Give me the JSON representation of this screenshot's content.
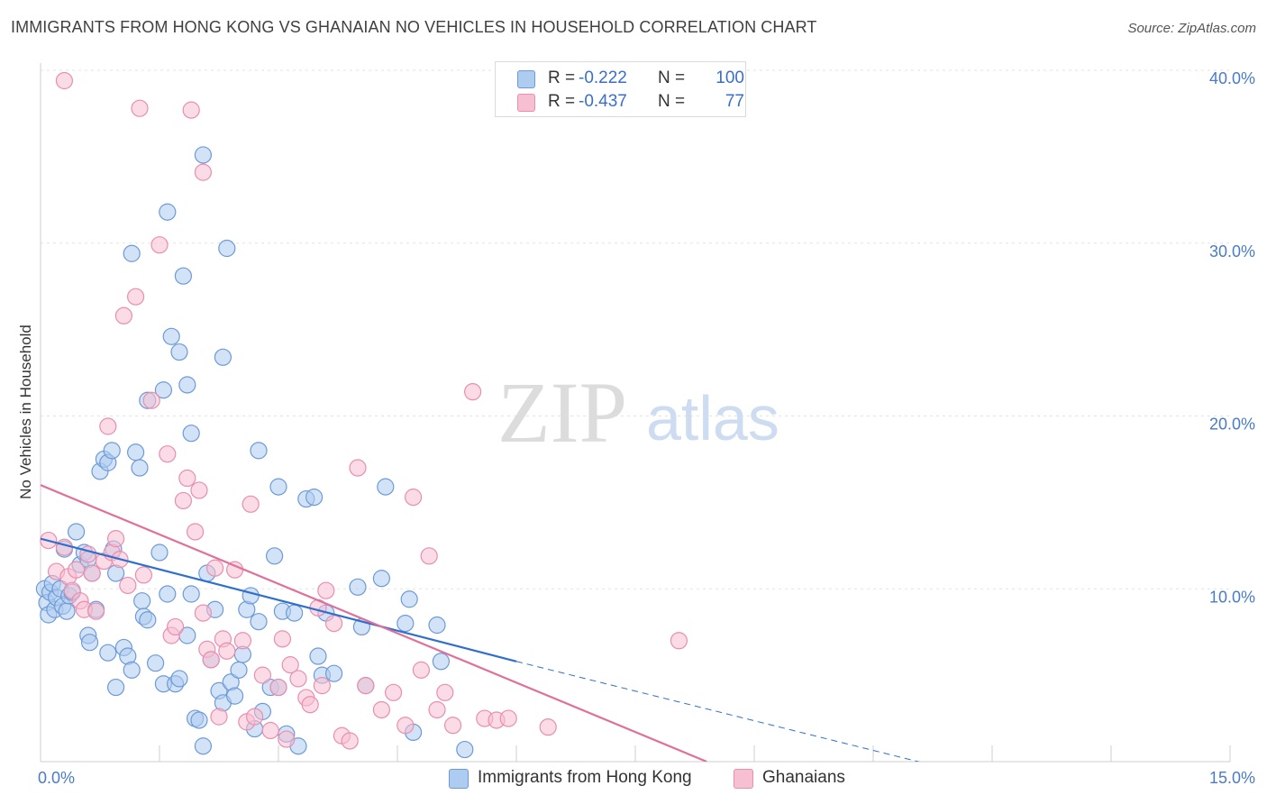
{
  "header": {
    "title": "IMMIGRANTS FROM HONG KONG VS GHANAIAN NO VEHICLES IN HOUSEHOLD CORRELATION CHART",
    "source": "Source: ZipAtlas.com"
  },
  "watermark": {
    "zip": "ZIP",
    "atlas": "atlas"
  },
  "legend": {
    "rows": [
      {
        "r_label": "R =",
        "r_value": "-0.222",
        "n_label": "N =",
        "n_value": "100"
      },
      {
        "r_label": "R =",
        "r_value": "-0.437",
        "n_label": "N =",
        "n_value": "77"
      }
    ]
  },
  "bottom_legend": {
    "items": [
      {
        "label": "Immigrants from Hong Kong"
      },
      {
        "label": "Ghanaians"
      }
    ]
  },
  "colors": {
    "blue_fill": "#aeccf0",
    "blue_stroke": "#6d9ad6",
    "blue_line": "#2f6fcc",
    "pink_fill": "#f7bfd2",
    "pink_stroke": "#e98eae",
    "pink_line": "#e0709a",
    "grid": "#e3e3e3",
    "tick_text": "#4a7bc8"
  },
  "chart_data": {
    "type": "scatter",
    "title": "IMMIGRANTS FROM HONG KONG VS GHANAIAN NO VEHICLES IN HOUSEHOLD CORRELATION CHART",
    "xlabel": "",
    "ylabel": "No Vehicles in Household",
    "xlim": [
      0,
      15
    ],
    "ylim": [
      0,
      40
    ],
    "x_tick_labels": [
      "0.0%",
      "15.0%"
    ],
    "y_ticks": [
      10,
      20,
      30,
      40
    ],
    "y_tick_labels": [
      "10.0%",
      "20.0%",
      "30.0%",
      "40.0%"
    ],
    "grid": true,
    "legend_position": "top-center",
    "series": [
      {
        "name": "Immigrants from Hong Kong",
        "color": "#aeccf0",
        "points": [
          [
            0.05,
            10.0
          ],
          [
            0.08,
            9.2
          ],
          [
            0.1,
            8.5
          ],
          [
            0.12,
            9.8
          ],
          [
            0.15,
            10.3
          ],
          [
            0.18,
            8.8
          ],
          [
            0.2,
            9.5
          ],
          [
            0.25,
            10.0
          ],
          [
            0.28,
            9.0
          ],
          [
            0.3,
            12.3
          ],
          [
            0.33,
            8.7
          ],
          [
            0.36,
            9.6
          ],
          [
            0.4,
            9.8
          ],
          [
            0.45,
            13.3
          ],
          [
            0.5,
            11.4
          ],
          [
            0.55,
            12.1
          ],
          [
            0.6,
            11.7
          ],
          [
            0.65,
            10.9
          ],
          [
            0.7,
            8.8
          ],
          [
            0.6,
            7.3
          ],
          [
            0.62,
            6.9
          ],
          [
            0.75,
            16.8
          ],
          [
            0.8,
            17.5
          ],
          [
            0.85,
            17.3
          ],
          [
            0.9,
            18.0
          ],
          [
            0.92,
            12.3
          ],
          [
            0.95,
            10.9
          ],
          [
            0.85,
            6.3
          ],
          [
            0.95,
            4.3
          ],
          [
            1.05,
            6.6
          ],
          [
            1.1,
            6.1
          ],
          [
            1.15,
            5.3
          ],
          [
            1.2,
            17.9
          ],
          [
            1.25,
            17.0
          ],
          [
            1.28,
            9.3
          ],
          [
            1.3,
            8.4
          ],
          [
            1.35,
            8.2
          ],
          [
            1.45,
            5.7
          ],
          [
            1.5,
            12.1
          ],
          [
            1.55,
            4.5
          ],
          [
            1.6,
            9.7
          ],
          [
            1.7,
            4.5
          ],
          [
            1.75,
            4.8
          ],
          [
            1.85,
            7.3
          ],
          [
            1.9,
            9.7
          ],
          [
            1.95,
            2.5
          ],
          [
            2.0,
            2.4
          ],
          [
            2.05,
            0.9
          ],
          [
            2.1,
            10.9
          ],
          [
            2.15,
            5.9
          ],
          [
            2.2,
            8.8
          ],
          [
            2.25,
            4.1
          ],
          [
            2.3,
            3.4
          ],
          [
            2.4,
            4.6
          ],
          [
            2.45,
            3.8
          ],
          [
            2.5,
            5.3
          ],
          [
            2.55,
            6.2
          ],
          [
            2.6,
            8.8
          ],
          [
            2.65,
            9.6
          ],
          [
            2.7,
            1.9
          ],
          [
            2.75,
            8.1
          ],
          [
            2.8,
            2.9
          ],
          [
            2.9,
            4.3
          ],
          [
            2.95,
            11.9
          ],
          [
            3.0,
            4.3
          ],
          [
            3.05,
            8.7
          ],
          [
            3.1,
            1.6
          ],
          [
            3.2,
            8.6
          ],
          [
            3.25,
            0.9
          ],
          [
            3.35,
            15.2
          ],
          [
            3.45,
            15.3
          ],
          [
            3.5,
            6.1
          ],
          [
            3.55,
            5.0
          ],
          [
            3.6,
            8.6
          ],
          [
            3.7,
            5.1
          ],
          [
            4.0,
            10.1
          ],
          [
            4.05,
            7.8
          ],
          [
            4.1,
            4.4
          ],
          [
            4.3,
            10.6
          ],
          [
            4.35,
            15.9
          ],
          [
            4.6,
            8.0
          ],
          [
            4.65,
            9.4
          ],
          [
            4.7,
            1.7
          ],
          [
            5.0,
            7.9
          ],
          [
            5.05,
            5.8
          ],
          [
            5.35,
            0.7
          ],
          [
            1.35,
            20.9
          ],
          [
            1.55,
            21.5
          ],
          [
            1.65,
            24.6
          ],
          [
            1.75,
            23.7
          ],
          [
            1.8,
            28.1
          ],
          [
            1.85,
            21.8
          ],
          [
            1.9,
            19.0
          ],
          [
            1.6,
            31.8
          ],
          [
            1.15,
            29.4
          ],
          [
            2.05,
            35.1
          ],
          [
            2.3,
            23.4
          ],
          [
            2.35,
            29.7
          ],
          [
            2.75,
            18.0
          ],
          [
            3.0,
            15.9
          ]
        ]
      },
      {
        "name": "Ghanaians",
        "color": "#f7bfd2",
        "points": [
          [
            0.1,
            12.8
          ],
          [
            0.2,
            11.0
          ],
          [
            0.3,
            12.4
          ],
          [
            0.35,
            10.7
          ],
          [
            0.4,
            9.9
          ],
          [
            0.45,
            11.1
          ],
          [
            0.5,
            9.3
          ],
          [
            0.55,
            8.8
          ],
          [
            0.6,
            12.0
          ],
          [
            0.65,
            10.9
          ],
          [
            0.7,
            8.7
          ],
          [
            0.8,
            11.6
          ],
          [
            0.85,
            19.4
          ],
          [
            0.9,
            12.1
          ],
          [
            0.95,
            12.9
          ],
          [
            1.0,
            11.7
          ],
          [
            1.05,
            25.8
          ],
          [
            1.1,
            10.2
          ],
          [
            1.2,
            26.9
          ],
          [
            1.3,
            10.8
          ],
          [
            1.4,
            20.9
          ],
          [
            1.5,
            29.9
          ],
          [
            1.6,
            17.8
          ],
          [
            1.65,
            7.3
          ],
          [
            1.7,
            7.8
          ],
          [
            1.8,
            15.1
          ],
          [
            1.85,
            16.4
          ],
          [
            1.95,
            13.3
          ],
          [
            2.0,
            15.7
          ],
          [
            2.05,
            8.6
          ],
          [
            2.1,
            6.5
          ],
          [
            2.15,
            5.9
          ],
          [
            2.2,
            11.2
          ],
          [
            2.25,
            2.6
          ],
          [
            2.3,
            7.1
          ],
          [
            2.35,
            6.4
          ],
          [
            2.45,
            11.1
          ],
          [
            2.55,
            7.0
          ],
          [
            2.6,
            2.3
          ],
          [
            2.65,
            14.9
          ],
          [
            2.7,
            2.6
          ],
          [
            2.8,
            5.0
          ],
          [
            2.9,
            1.8
          ],
          [
            3.0,
            4.3
          ],
          [
            3.05,
            7.1
          ],
          [
            3.1,
            1.3
          ],
          [
            3.15,
            5.6
          ],
          [
            3.25,
            4.8
          ],
          [
            3.35,
            3.7
          ],
          [
            3.4,
            3.3
          ],
          [
            3.5,
            8.9
          ],
          [
            3.55,
            4.4
          ],
          [
            3.6,
            9.9
          ],
          [
            3.7,
            8.0
          ],
          [
            3.8,
            1.5
          ],
          [
            3.9,
            1.2
          ],
          [
            4.0,
            17.0
          ],
          [
            4.1,
            4.4
          ],
          [
            4.3,
            3.0
          ],
          [
            4.45,
            4.0
          ],
          [
            4.6,
            2.1
          ],
          [
            4.7,
            15.3
          ],
          [
            4.8,
            5.3
          ],
          [
            4.9,
            11.9
          ],
          [
            5.0,
            3.0
          ],
          [
            5.1,
            4.0
          ],
          [
            5.2,
            2.1
          ],
          [
            5.45,
            21.4
          ],
          [
            5.6,
            2.5
          ],
          [
            5.75,
            2.4
          ],
          [
            5.9,
            2.5
          ],
          [
            6.4,
            2.0
          ],
          [
            8.05,
            7.0
          ],
          [
            0.3,
            39.4
          ],
          [
            1.25,
            37.8
          ],
          [
            1.9,
            37.7
          ],
          [
            2.05,
            34.1
          ]
        ]
      }
    ],
    "trend_lines": [
      {
        "series": "Immigrants from Hong Kong",
        "x": [
          0,
          6.0
        ],
        "y": [
          12.9,
          5.8
        ],
        "dashed_extension_to": [
          15,
          -4.5
        ]
      },
      {
        "series": "Ghanaians",
        "x": [
          0,
          8.4
        ],
        "y": [
          16.0,
          0.0
        ]
      }
    ]
  }
}
